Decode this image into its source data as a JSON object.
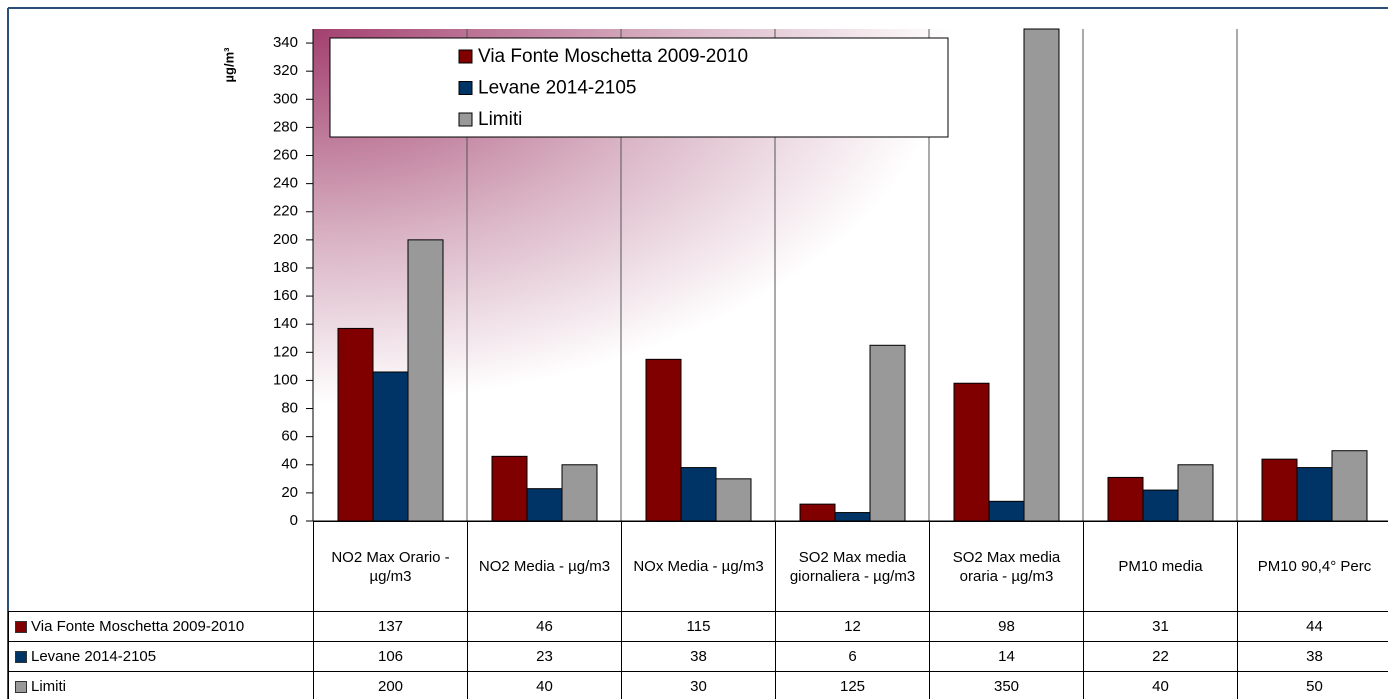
{
  "chart_data": {
    "type": "bar",
    "y_label": "µg/m³",
    "categories": [
      "NO2 Max Orario - µg/m3",
      "NO2 Media - µg/m3",
      "NOx Media - µg/m3",
      "SO2 Max media giornaliera - µg/m3",
      "SO2 Max media oraria - µg/m3",
      "PM10 media",
      "PM10 90,4° Perc"
    ],
    "series": [
      {
        "name": "Via Fonte Moschetta 2009-2010",
        "color": "#800000",
        "values": [
          137,
          46,
          115,
          12,
          98,
          31,
          44
        ]
      },
      {
        "name": "Levane 2014-2105",
        "color": "#003366",
        "values": [
          106,
          23,
          38,
          6,
          14,
          22,
          38
        ]
      },
      {
        "name": "Limiti",
        "color": "#999999",
        "values": [
          200,
          40,
          30,
          125,
          350,
          40,
          50
        ]
      }
    ],
    "ylim": [
      0,
      350
    ],
    "yticks": [
      0,
      20,
      40,
      60,
      80,
      100,
      120,
      140,
      160,
      180,
      200,
      220,
      240,
      260,
      280,
      300,
      320,
      340
    ],
    "grid": false
  }
}
